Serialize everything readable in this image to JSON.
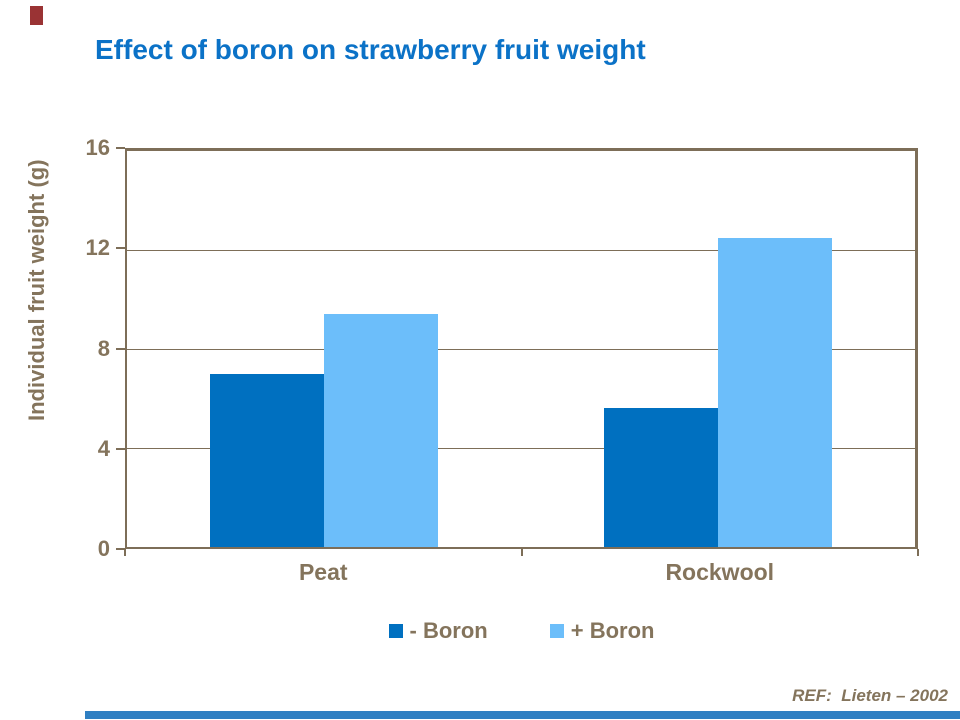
{
  "chart_data": {
    "type": "bar",
    "title": "Effect of boron on strawberry fruit weight",
    "categories": [
      "Peat",
      "Rockwool"
    ],
    "series": [
      {
        "name": "- Boron",
        "color": "#0070C0",
        "values": [
          7.0,
          5.6
        ]
      },
      {
        "name": "+ Boron",
        "color": "#6CBEFA",
        "values": [
          9.4,
          12.5
        ]
      }
    ],
    "xlabel": "",
    "ylabel": "Individual fruit weight (g)",
    "ylim": [
      0,
      16
    ],
    "yticks": [
      0,
      4,
      8,
      12,
      16
    ],
    "gridlines": "horizontal at 4, 8, 12",
    "legend_position": "bottom"
  },
  "footer": {
    "reference": "REF:  Lieten – 2002"
  },
  "colors": {
    "title_blue": "#0B72C7",
    "axis_brown": "#7D6E58",
    "text_brown": "#84745C",
    "bar_dark_blue": "#0070C0",
    "bar_light_blue": "#6CBEFA",
    "corner_mark_red": "#9A3334",
    "bottom_bar_blue": "#2F7FC2"
  }
}
